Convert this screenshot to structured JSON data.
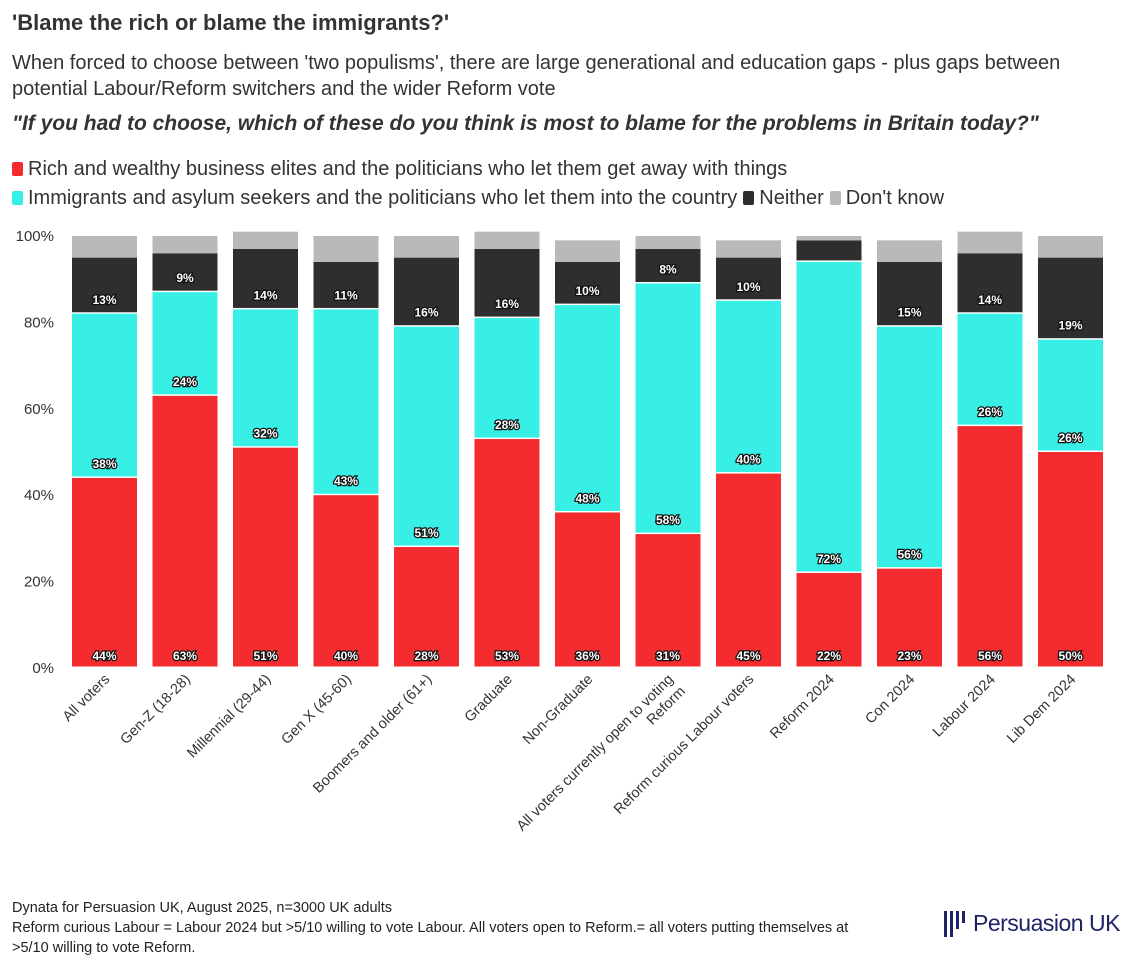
{
  "title": "'Blame the rich or blame the immigrants?'",
  "subtitle": "When forced to choose between 'two populisms', there are large generational and education gaps - plus gaps between potential Labour/Reform switchers and the wider Reform vote",
  "question": "\"If you had to choose, which of these do you think is most to blame for the problems in Britain today?\"",
  "footer": [
    "Dynata for Persuasion UK, August 2025, n=3000 UK adults",
    "Reform curious Labour = Labour 2024 but >5/10 willing to vote Labour. All voters open to Reform.= all voters putting themselves at >5/10 willing to vote Reform."
  ],
  "logo": "Persuasion UK",
  "chart_data": {
    "type": "bar",
    "stacked": true,
    "title": "'Blame the rich or blame the immigrants?'",
    "xlabel": "",
    "ylabel": "",
    "ylim": [
      0,
      100
    ],
    "yticks": [
      "0%",
      "20%",
      "40%",
      "60%",
      "80%",
      "100%"
    ],
    "legend_placement": "top",
    "categories": [
      "All voters",
      "Gen-Z (18-28)",
      "Millennial (29-44)",
      "Gen X (45-60)",
      "Boomers and older (61+)",
      "Graduate",
      "Non-Graduate",
      "All voters currently open to voting Reform",
      "Reform curious Labour voters",
      "Reform 2024",
      "Con 2024",
      "Labour 2024",
      "Lib Dem 2024"
    ],
    "series": [
      {
        "name": "Rich and wealthy business elites and the politicians who let them get away with things",
        "color": "#f52c2f",
        "values": [
          44,
          63,
          51,
          40,
          28,
          53,
          36,
          31,
          45,
          22,
          23,
          56,
          50
        ],
        "labeled": true
      },
      {
        "name": "Immigrants and asylum seekers and the politicians who let them into the country",
        "color": "#37efe5",
        "values": [
          38,
          24,
          32,
          43,
          51,
          28,
          48,
          58,
          40,
          72,
          56,
          26,
          26
        ],
        "labeled": true
      },
      {
        "name": "Neither",
        "color": "#2e2e2e",
        "values": [
          13,
          9,
          14,
          11,
          16,
          16,
          10,
          8,
          10,
          5,
          15,
          14,
          19
        ],
        "labeled": true
      },
      {
        "name": "Don't know",
        "color": "#b9b9b9",
        "values": [
          5,
          4,
          4,
          6,
          5,
          4,
          5,
          3,
          4,
          1,
          5,
          5,
          5
        ],
        "labeled": false
      }
    ]
  }
}
